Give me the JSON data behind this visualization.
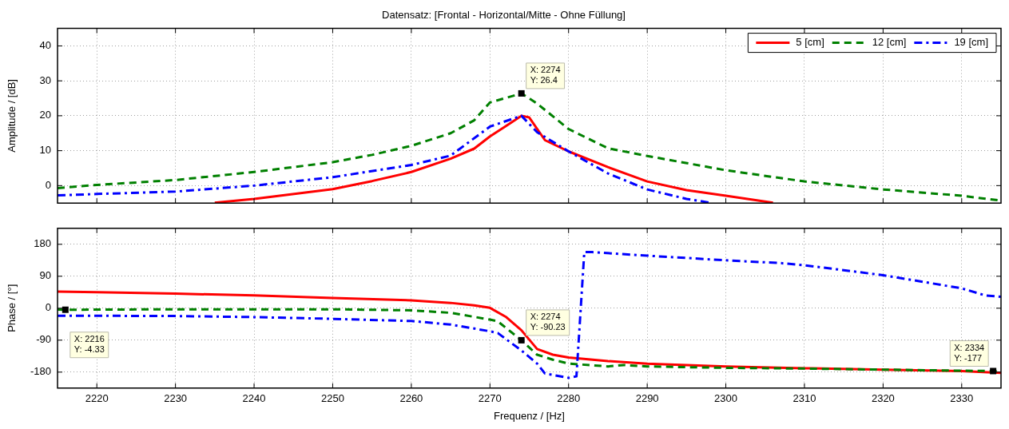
{
  "chart_data": [
    {
      "type": "line",
      "title": "Datensatz: [Frontal - Horizontal/Mitte - Ohne Füllung]",
      "ylabel": "Amplitude / [dB]",
      "xlim": [
        2215,
        2335
      ],
      "xticks": [
        2220,
        2230,
        2240,
        2250,
        2260,
        2270,
        2280,
        2290,
        2300,
        2310,
        2320,
        2330
      ],
      "ylim": [
        -5,
        45
      ],
      "yticks": [
        0,
        10,
        20,
        30,
        40
      ],
      "grid": true,
      "legend": "top right",
      "tick_labels": "y",
      "series": [
        {
          "name": "5 [cm]",
          "color": "#ff0000",
          "line_style": "solid",
          "x": [
            2235,
            2240,
            2250,
            2255,
            2260,
            2265,
            2268,
            2270,
            2272,
            2274,
            2275,
            2277,
            2280,
            2285,
            2290,
            2295,
            2300,
            2306
          ],
          "values": [
            -4.9,
            -3.8,
            -1,
            1.3,
            3.9,
            7.7,
            10.6,
            14.1,
            17,
            20,
            19.5,
            13,
            9.8,
            5.3,
            1.2,
            -1.3,
            -2.9,
            -4.9
          ]
        },
        {
          "name": "12 [cm]",
          "color": "#008000",
          "line_style": "dashed",
          "x": [
            2215,
            2220,
            2230,
            2240,
            2250,
            2255,
            2260,
            2265,
            2268,
            2270,
            2274,
            2276,
            2280,
            2285,
            2290,
            2300,
            2310,
            2320,
            2330,
            2335
          ],
          "values": [
            -0.7,
            0.2,
            1.6,
            3.9,
            6.7,
            8.8,
            11.4,
            15,
            18.7,
            23.8,
            26.4,
            23.5,
            16.2,
            10.7,
            8.5,
            4.4,
            1.2,
            -1.1,
            -2.9,
            -4.3
          ]
        },
        {
          "name": "19 [cm]",
          "color": "#0000ff",
          "line_style": "dotted",
          "x": [
            2215,
            2220,
            2230,
            2240,
            2250,
            2260,
            2265,
            2270,
            2274,
            2276,
            2280,
            2285,
            2290,
            2295,
            2298
          ],
          "values": [
            -2.8,
            -2.4,
            -1.7,
            0,
            2.4,
            5.9,
            8.6,
            16.9,
            20,
            15.3,
            9.8,
            3.5,
            -1.1,
            -3.8,
            -4.9
          ]
        }
      ],
      "annotations": [
        {
          "text": "X: 2274\nY: 26.4",
          "x": 2274,
          "y": 26.4
        }
      ]
    },
    {
      "type": "line",
      "xlabel": "Frequenz / [Hz]",
      "ylabel": "Phase / [°]",
      "xlim": [
        2215,
        2335
      ],
      "xticks": [
        2220,
        2230,
        2240,
        2250,
        2260,
        2270,
        2280,
        2290,
        2300,
        2310,
        2320,
        2330
      ],
      "ylim": [
        -225,
        225
      ],
      "yticks": [
        -180,
        -90,
        0,
        90,
        180
      ],
      "grid": true,
      "series": [
        {
          "color": "#ff0000",
          "line_style": "solid",
          "x": [
            2215,
            2220,
            2230,
            2240,
            2250,
            2260,
            2265,
            2268,
            2270,
            2272,
            2274,
            2276,
            2278,
            2280,
            2285,
            2290,
            2300,
            2310,
            2320,
            2330,
            2335
          ],
          "values": [
            47,
            45,
            41,
            36,
            29,
            22,
            15,
            8,
            1,
            -24,
            -62,
            -115,
            -131,
            -139,
            -149,
            -156,
            -164,
            -169,
            -173,
            -177,
            -182
          ]
        },
        {
          "color": "#008000",
          "line_style": "dashed",
          "x": [
            2215,
            2216,
            2230,
            2250,
            2260,
            2265,
            2270,
            2271,
            2274,
            2276,
            2278,
            2280,
            2285,
            2287,
            2290,
            2300,
            2310,
            2320,
            2330,
            2334,
            2335
          ],
          "values": [
            -4,
            -4.33,
            -3,
            -3,
            -6,
            -13,
            -32,
            -37,
            -90.23,
            -131,
            -145,
            -156,
            -164,
            -160,
            -164,
            -168,
            -170,
            -173,
            -176,
            -177,
            -178
          ]
        },
        {
          "color": "#0000ff",
          "line_style": "dotted",
          "x": [
            2215,
            2230,
            2240,
            2250,
            2260,
            2265,
            2270,
            2271,
            2274,
            2276,
            2277,
            2280,
            2281,
            2282,
            2283,
            2290,
            2300,
            2307,
            2310,
            2320,
            2330,
            2333,
            2335
          ],
          "values": [
            -21,
            -22,
            -25,
            -30,
            -36,
            -46,
            -65,
            -70,
            -119,
            -156,
            -184,
            -196,
            -192,
            158,
            158,
            148,
            135,
            127,
            121,
            93,
            56,
            36,
            32
          ]
        }
      ],
      "annotations": [
        {
          "text": "X: 2216\nY: -4.33",
          "x": 2216,
          "y": -4.33
        },
        {
          "text": "X: 2274\nY: -90.23",
          "x": 2274,
          "y": -90.23
        },
        {
          "text": "X: 2334\nY: -177",
          "x": 2334,
          "y": -177
        }
      ]
    }
  ]
}
